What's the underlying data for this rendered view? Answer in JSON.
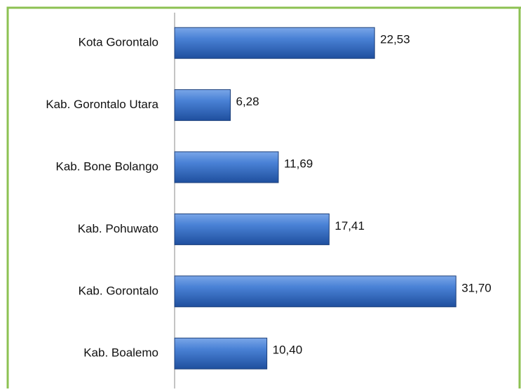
{
  "chart_data": {
    "type": "bar",
    "orientation": "horizontal",
    "categories": [
      "Kota Gorontalo",
      "Kab. Gorontalo Utara",
      "Kab. Bone Bolango",
      "Kab. Pohuwato",
      "Kab. Gorontalo",
      "Kab. Boalemo"
    ],
    "values": [
      22.53,
      6.28,
      11.69,
      17.41,
      31.7,
      10.4
    ],
    "value_labels": [
      "22,53",
      "6,28",
      "11,69",
      "17,41",
      "31,70",
      "10,40"
    ],
    "color": "#3a6fc4",
    "xlim": [
      0,
      35
    ]
  }
}
